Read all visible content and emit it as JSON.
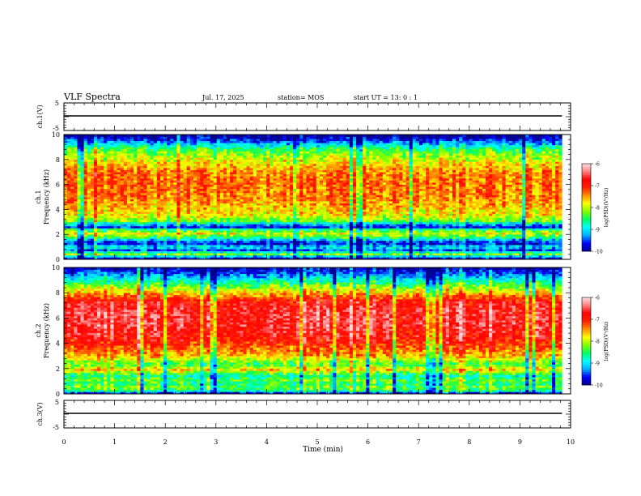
{
  "header": {
    "title": "VLF Spectra",
    "date": "Jul. 17, 2025",
    "station": "station= MOS",
    "start": "start UT = 13: 0 : 1"
  },
  "chart_data": [
    {
      "type": "line",
      "panel": "ch1-voltage",
      "ylabel": "ch.1(V)",
      "ylim": [
        -5,
        5
      ],
      "y_ticks": [
        "5",
        "-5"
      ],
      "xlim": [
        0,
        10
      ],
      "x": [
        0,
        9.83
      ],
      "values": [
        0,
        0
      ]
    },
    {
      "type": "heatmap",
      "panel": "ch1-spectrogram",
      "ylabel": "ch.1\nFrequency (kHz)",
      "ylim": [
        0,
        10
      ],
      "y_ticks": [
        "0",
        "2",
        "4",
        "6",
        "8",
        "10"
      ],
      "xlim": [
        0,
        10
      ],
      "data_xmax": 9.83,
      "profile": [
        {
          "f": 0.0,
          "v": -10.0
        },
        {
          "f": 0.2,
          "v": -9.3
        },
        {
          "f": 0.45,
          "v": -8.0
        },
        {
          "f": 0.7,
          "v": -9.6
        },
        {
          "f": 1.0,
          "v": -8.9
        },
        {
          "f": 1.3,
          "v": -9.8
        },
        {
          "f": 1.55,
          "v": -9.2
        },
        {
          "f": 1.8,
          "v": -8.4
        },
        {
          "f": 2.1,
          "v": -7.9
        },
        {
          "f": 2.4,
          "v": -8.6
        },
        {
          "f": 2.6,
          "v": -9.7
        },
        {
          "f": 2.8,
          "v": -9.2
        },
        {
          "f": 3.1,
          "v": -8.2
        },
        {
          "f": 3.6,
          "v": -7.8
        },
        {
          "f": 4.2,
          "v": -7.6
        },
        {
          "f": 5.0,
          "v": -7.4
        },
        {
          "f": 6.0,
          "v": -7.3
        },
        {
          "f": 7.0,
          "v": -7.4
        },
        {
          "f": 8.0,
          "v": -7.9
        },
        {
          "f": 8.8,
          "v": -8.4
        },
        {
          "f": 9.3,
          "v": -9.2
        },
        {
          "f": 9.7,
          "v": -9.8
        },
        {
          "f": 10.0,
          "v": -10.0
        }
      ]
    },
    {
      "type": "heatmap",
      "panel": "ch2-spectrogram",
      "ylabel": "ch.2\nFrequency (kHz)",
      "ylim": [
        0,
        10
      ],
      "y_ticks": [
        "0",
        "2",
        "4",
        "6",
        "8",
        "10"
      ],
      "xlim": [
        0,
        10
      ],
      "data_xmax": 9.83,
      "profile": [
        {
          "f": 0.0,
          "v": -10.0
        },
        {
          "f": 0.2,
          "v": -8.8
        },
        {
          "f": 0.5,
          "v": -8.2
        },
        {
          "f": 0.8,
          "v": -8.6
        },
        {
          "f": 1.1,
          "v": -8.3
        },
        {
          "f": 1.4,
          "v": -8.7
        },
        {
          "f": 1.7,
          "v": -8.2
        },
        {
          "f": 1.95,
          "v": -7.6
        },
        {
          "f": 2.3,
          "v": -8.4
        },
        {
          "f": 2.7,
          "v": -8.0
        },
        {
          "f": 3.1,
          "v": -7.5
        },
        {
          "f": 3.7,
          "v": -7.2
        },
        {
          "f": 4.5,
          "v": -6.8
        },
        {
          "f": 5.5,
          "v": -6.6
        },
        {
          "f": 6.5,
          "v": -6.6
        },
        {
          "f": 7.3,
          "v": -6.8
        },
        {
          "f": 7.9,
          "v": -7.5
        },
        {
          "f": 8.5,
          "v": -8.2
        },
        {
          "f": 9.0,
          "v": -8.8
        },
        {
          "f": 9.5,
          "v": -9.4
        },
        {
          "f": 10.0,
          "v": -9.9
        }
      ]
    },
    {
      "type": "line",
      "panel": "ch3-voltage",
      "ylabel": "ch.3(V)",
      "ylim": [
        -5,
        5
      ],
      "y_ticks": [
        "5",
        "-5"
      ],
      "xlim": [
        0,
        10
      ],
      "x": [
        0,
        9.83
      ],
      "values": [
        0,
        0
      ]
    }
  ],
  "x_axis": {
    "label": "Time (min)",
    "ticks": [
      "0",
      "1",
      "2",
      "3",
      "4",
      "5",
      "6",
      "7",
      "8",
      "9",
      "10"
    ]
  },
  "colorbar": {
    "label": "log(PSD)(V²/Hz)",
    "range": [
      -10,
      -6
    ],
    "ticks": [
      "-6",
      "-7",
      "-8",
      "-9",
      "-10"
    ],
    "colormap": [
      "#000090",
      "#0000ff",
      "#00b0ff",
      "#00ffff",
      "#00ff60",
      "#80ff00",
      "#ffff00",
      "#ff9000",
      "#ff2000",
      "#ff0000",
      "#ff8080",
      "#ffe0e0"
    ]
  }
}
